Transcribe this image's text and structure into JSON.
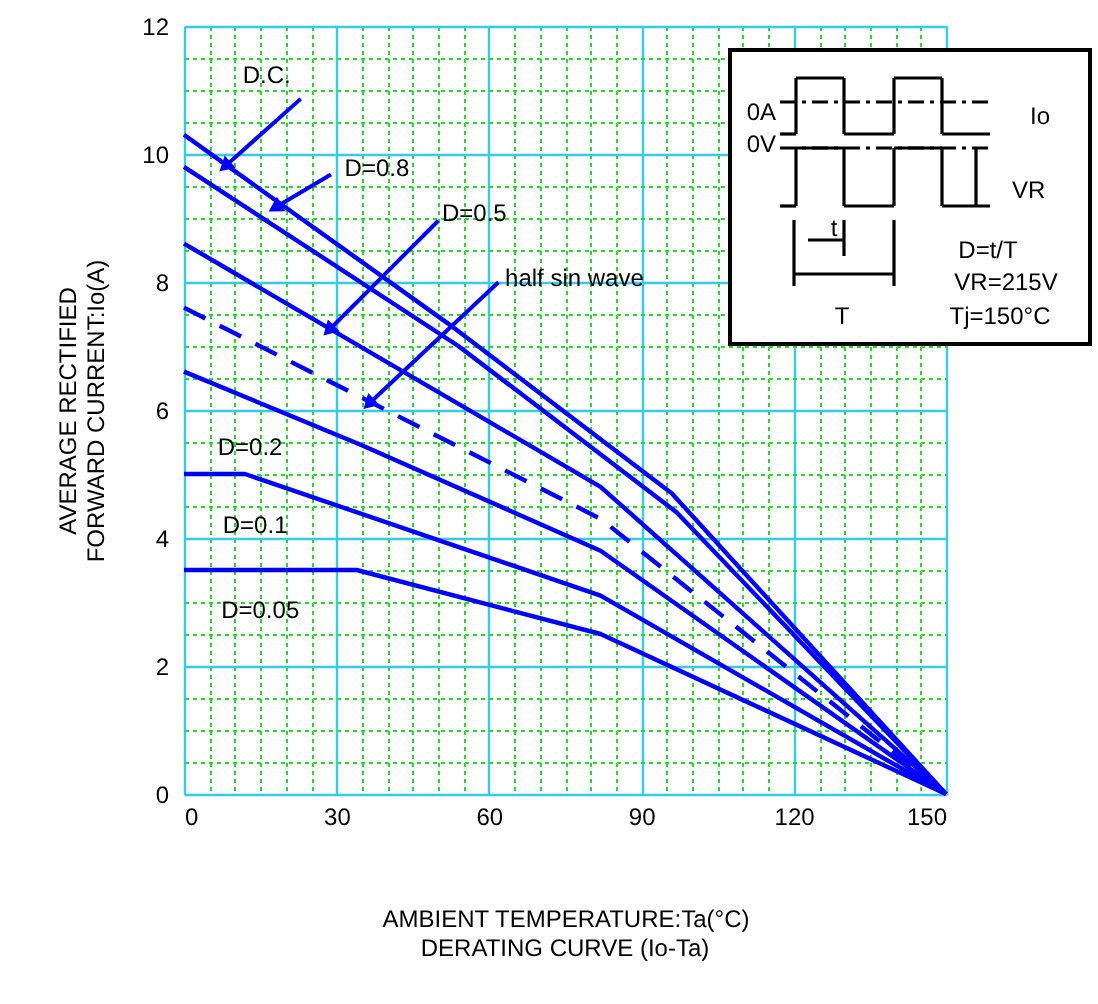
{
  "chart_data": {
    "type": "line",
    "title": "DERATING  CURVE (Io-Ta)",
    "xlabel": "AMBIENT TEMPERATURE:Ta(°C)",
    "ylabel": "AVERAGE RECTIFIED\nFORWARD CURRENT:Io(A)",
    "xlim": [
      0,
      150
    ],
    "ylim": [
      0,
      12
    ],
    "xticks": [
      0,
      {
        "value": 5,
        "label": null
      },
      {
        "value": 10,
        "label": null
      },
      {
        "value": 15,
        "label": null
      },
      {
        "value": 20,
        "label": null
      },
      {
        "value": 25,
        "label": null
      },
      30,
      {
        "value": 35,
        "label": null
      },
      {
        "value": 40,
        "label": null
      },
      {
        "value": 45,
        "label": null
      },
      {
        "value": 50,
        "label": null
      },
      {
        "value": 55,
        "label": null
      },
      60,
      {
        "value": 65,
        "label": null
      },
      {
        "value": 70,
        "label": null
      },
      {
        "value": 75,
        "label": null
      },
      {
        "value": 80,
        "label": null
      },
      {
        "value": 85,
        "label": null
      },
      90,
      {
        "value": 95,
        "label": null
      },
      {
        "value": 100,
        "label": null
      },
      {
        "value": 105,
        "label": null
      },
      {
        "value": 110,
        "label": null
      },
      {
        "value": 115,
        "label": null
      },
      120,
      {
        "value": 125,
        "label": null
      },
      {
        "value": 130,
        "label": null
      },
      {
        "value": 135,
        "label": null
      },
      {
        "value": 140,
        "label": null
      },
      {
        "value": 145,
        "label": null
      },
      150
    ],
    "yticks": [
      0,
      {
        "value": 0.5,
        "label": null
      },
      {
        "value": 1,
        "label": null
      },
      {
        "value": 1.5,
        "label": null
      },
      2,
      {
        "value": 2.5,
        "label": null
      },
      {
        "value": 3,
        "label": null
      },
      {
        "value": 3.5,
        "label": null
      },
      4,
      {
        "value": 4.5,
        "label": null
      },
      {
        "value": 5,
        "label": null
      },
      {
        "value": 5.5,
        "label": null
      },
      6,
      {
        "value": 6.5,
        "label": null
      },
      {
        "value": 7,
        "label": null
      },
      {
        "value": 7.5,
        "label": null
      },
      8,
      {
        "value": 8.5,
        "label": null
      },
      {
        "value": 9,
        "label": null
      },
      {
        "value": 9.5,
        "label": null
      },
      10,
      {
        "value": 10.5,
        "label": null
      },
      {
        "value": 11,
        "label": null
      },
      {
        "value": 11.5,
        "label": null
      },
      12
    ],
    "grid": true,
    "marker": "none",
    "series": [
      {
        "color": "#0000ff",
        "line_style": "solid",
        "x": [
          0,
          52,
          96,
          150
        ],
        "values": [
          10.3,
          7.35,
          4.7,
          0
        ]
      },
      {
        "color": "#0000ff",
        "line_style": "solid",
        "x": [
          0,
          54,
          97,
          150
        ],
        "values": [
          9.8,
          7.0,
          4.4,
          0
        ]
      },
      {
        "color": "#0000ff",
        "line_style": "solid",
        "x": [
          0,
          82,
          150
        ],
        "values": [
          8.6,
          4.8,
          0
        ]
      },
      {
        "color": "#0000ff",
        "line_style": "dashed",
        "x": [
          0,
          82,
          150
        ],
        "values": [
          7.6,
          4.3,
          0
        ]
      },
      {
        "color": "#0000ff",
        "line_style": "solid",
        "x": [
          0,
          35,
          82,
          150
        ],
        "values": [
          6.6,
          5.45,
          3.8,
          0
        ]
      },
      {
        "color": "#0000ff",
        "line_style": "solid",
        "x": [
          0,
          12,
          82,
          150
        ],
        "values": [
          5.0,
          5.0,
          3.1,
          0
        ]
      },
      {
        "color": "#0000ff",
        "line_style": "solid",
        "x": [
          0,
          34,
          82,
          150
        ],
        "values": [
          3.5,
          3.5,
          2.5,
          0
        ]
      }
    ],
    "annotations": [
      {
        "text": "D.C.",
        "x": 8.4,
        "y": 9.83
      },
      {
        "text": "D=0.8",
        "x": 18.3,
        "y": 9.18
      },
      {
        "text": "D=0.5",
        "x": 28.8,
        "y": 7.27
      },
      {
        "text": "half sin wave",
        "x": 36.7,
        "y": 6.12
      },
      {
        "text": "D=0.2",
        "x": 13,
        "y": 6.17
      },
      {
        "text": "D=0.1",
        "x": 14,
        "y": 4.95
      },
      {
        "text": "D=0.05",
        "x": 15,
        "y": 3.5
      },
      "Io",
      "0A",
      "0V",
      "VR",
      "t",
      "T",
      "D=t/T",
      "VR=215V",
      "Tj=150°C"
    ]
  }
}
